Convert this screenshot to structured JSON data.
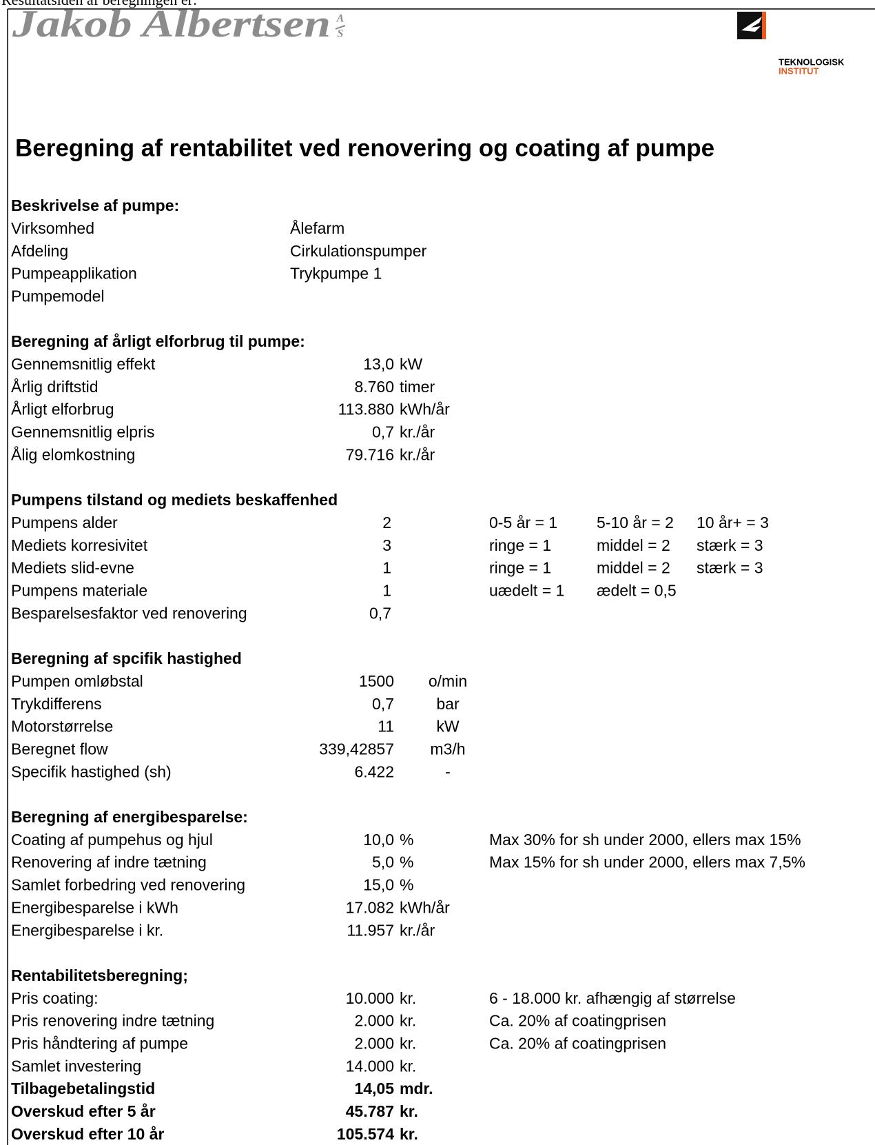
{
  "intro": "Resultatsiden af beregningen er:",
  "logo": {
    "name": "Jakob Albertsen",
    "suffix": [
      "A",
      "S"
    ]
  },
  "partner_logo": {
    "line1": "TEKNOLOGISK",
    "line2": "INSTITUT"
  },
  "title": "Beregning af rentabilitet ved renovering og coating af pumpe",
  "sections": [
    {
      "heading": "Beskrivelse af pumpe:",
      "rows": [
        {
          "label": "Virksomhed",
          "value": "Ålefarm"
        },
        {
          "label": "Afdeling",
          "value": "Cirkulationspumper"
        },
        {
          "label": "Pumpeapplikation",
          "value": "Trykpumpe 1"
        },
        {
          "label": "Pumpemodel"
        }
      ]
    },
    {
      "heading": "Beregning af årligt elforbrug til pumpe:",
      "rows": [
        {
          "label": "Gennemsnitlig effekt",
          "value": "13,0",
          "unit": "kW"
        },
        {
          "label": "Årlig driftstid",
          "value": "8.760",
          "unit": "timer"
        },
        {
          "label": "Årligt elforbrug",
          "value": "113.880",
          "unit": "kWh/år"
        },
        {
          "label": "Gennemsnitlig elpris",
          "value": "0,7",
          "unit": "kr./år"
        },
        {
          "label": "Ålig elomkostning",
          "value": "79.716",
          "unit": "kr./år"
        }
      ]
    },
    {
      "heading": "Pumpens tilstand og mediets beskaffenhed",
      "rows": [
        {
          "label": "Pumpens alder",
          "value": "2",
          "notes": [
            "0-5 år = 1",
            "5-10 år = 2",
            "10 år+ = 3"
          ]
        },
        {
          "label": "Mediets korresivitet",
          "value": "3",
          "notes": [
            "ringe = 1",
            "middel = 2",
            "stærk = 3"
          ]
        },
        {
          "label": "Mediets slid-evne",
          "value": "1",
          "notes": [
            "ringe = 1",
            "middel = 2",
            "stærk = 3"
          ]
        },
        {
          "label": "Pumpens materiale",
          "value": "1",
          "notes": [
            "uædelt = 1",
            "ædelt = 0,5"
          ]
        },
        {
          "label": "Besparelsesfaktor ved renovering",
          "value": "0,7"
        }
      ]
    },
    {
      "heading": "Beregning af spcifik hastighed",
      "rows": [
        {
          "label": "Pumpen omløbstal",
          "value": "1500",
          "unit": "o/min"
        },
        {
          "label": "Trykdifferens",
          "value": "0,7",
          "unit": "bar"
        },
        {
          "label": "Motorstørrelse",
          "value": "11",
          "unit": "kW"
        },
        {
          "label": "Beregnet flow",
          "value": "339,42857",
          "unit": "m3/h"
        },
        {
          "label": "Specifik hastighed (sh)",
          "value": "6.422",
          "unit": "-"
        }
      ]
    },
    {
      "heading": "Beregning af energibesparelse:",
      "rows": [
        {
          "label": "Coating af pumpehus og hjul",
          "value": "10,0",
          "unit": "%",
          "notes": [
            "Max 30% for sh under 2000, ellers max 15%"
          ]
        },
        {
          "label": "Renovering af indre tætning",
          "value": "5,0",
          "unit": "%",
          "notes": [
            "Max 15% for sh under 2000, ellers max 7,5%"
          ]
        },
        {
          "label": "Samlet forbedring ved renovering",
          "value": "15,0",
          "unit": "%"
        },
        {
          "label": "Energibesparelse i kWh",
          "value": "17.082",
          "unit": "kWh/år"
        },
        {
          "label": "Energibesparelse i kr.",
          "value": "11.957",
          "unit": "kr./år"
        }
      ]
    },
    {
      "heading": "Rentabilitetsberegning;",
      "rows": [
        {
          "label": "Pris coating:",
          "value": "10.000",
          "unit": "kr.",
          "notes": [
            "6 - 18.000 kr. afhængig af størrelse"
          ]
        },
        {
          "label": "Pris renovering indre tætning",
          "value": "2.000",
          "unit": "kr.",
          "notes": [
            "Ca. 20% af coatingprisen"
          ]
        },
        {
          "label": "Pris håndtering af pumpe",
          "value": "2.000",
          "unit": "kr.",
          "notes": [
            "Ca. 20% af coatingprisen"
          ]
        },
        {
          "label": "Samlet investering",
          "value": "14.000",
          "unit": "kr."
        }
      ],
      "summary_rows": [
        {
          "label": "Tilbagebetalingstid",
          "value": "14,05",
          "unit": "mdr."
        },
        {
          "label": "Overskud efter 5 år",
          "value": "45.787",
          "unit": "kr."
        },
        {
          "label": "Overskud efter 10 år",
          "value": "105.574",
          "unit": "kr."
        }
      ]
    }
  ]
}
